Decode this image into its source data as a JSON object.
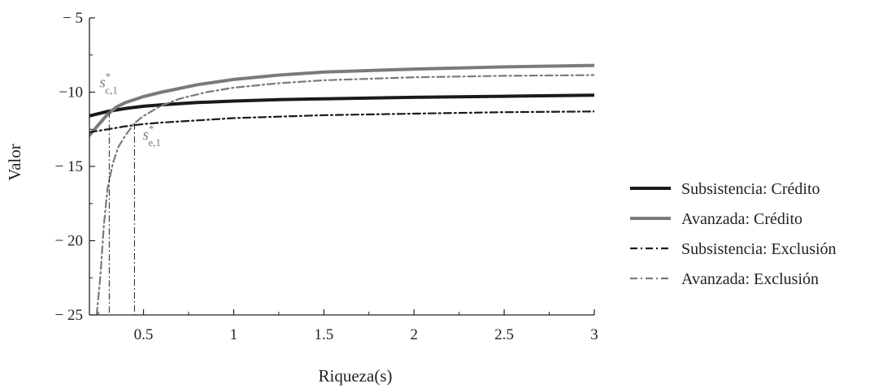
{
  "chart_data": {
    "type": "line",
    "title": "",
    "xlabel": "Riqueza(s)",
    "ylabel": "Valor",
    "xlim": [
      0.2,
      3
    ],
    "ylim": [
      -25,
      -5
    ],
    "xticks": [
      0.5,
      1,
      1.5,
      2,
      2.5,
      3
    ],
    "xtick_labels": [
      "0.5",
      "1",
      "1.5",
      "2",
      "2.5",
      "3"
    ],
    "yticks": [
      -5,
      -10,
      -15,
      -20,
      -25
    ],
    "ytick_labels": [
      "− 5",
      "−10",
      "− 15",
      "− 20",
      "− 25"
    ],
    "grid": false,
    "legend_position": "right",
    "series": [
      {
        "name": "Subsistencia: Crédito",
        "color": "#1a1a1a",
        "style": "solid",
        "x": [
          0.2,
          0.3,
          0.4,
          0.5,
          0.6,
          0.8,
          1.0,
          1.25,
          1.5,
          2.0,
          2.5,
          3.0
        ],
        "y": [
          -11.6,
          -11.3,
          -11.1,
          -10.95,
          -10.85,
          -10.7,
          -10.6,
          -10.5,
          -10.45,
          -10.35,
          -10.28,
          -10.2
        ]
      },
      {
        "name": "Avanzada: Crédito",
        "color": "#7a7a7a",
        "style": "solid",
        "x": [
          0.2,
          0.25,
          0.3,
          0.35,
          0.4,
          0.5,
          0.6,
          0.8,
          1.0,
          1.25,
          1.5,
          2.0,
          2.5,
          3.0
        ],
        "y": [
          -12.9,
          -12.2,
          -11.5,
          -11.0,
          -10.7,
          -10.3,
          -10.0,
          -9.5,
          -9.15,
          -8.85,
          -8.65,
          -8.45,
          -8.3,
          -8.2
        ]
      },
      {
        "name": "Subsistencia: Exclusión",
        "color": "#1a1a1a",
        "style": "dashdot",
        "x": [
          0.2,
          0.3,
          0.4,
          0.5,
          0.6,
          0.8,
          1.0,
          1.25,
          1.5,
          2.0,
          2.5,
          3.0
        ],
        "y": [
          -12.7,
          -12.5,
          -12.3,
          -12.15,
          -12.05,
          -11.9,
          -11.75,
          -11.65,
          -11.55,
          -11.45,
          -11.35,
          -11.3
        ]
      },
      {
        "name": "Avanzada: Exclusión",
        "color": "#7a7a7a",
        "style": "dashdot",
        "x": [
          0.24,
          0.26,
          0.28,
          0.3,
          0.33,
          0.36,
          0.4,
          0.45,
          0.5,
          0.6,
          0.7,
          0.85,
          1.0,
          1.25,
          1.5,
          2.0,
          2.5,
          3.0
        ],
        "y": [
          -25,
          -22.5,
          -19.0,
          -16.5,
          -14.8,
          -13.7,
          -12.9,
          -12.1,
          -11.6,
          -10.9,
          -10.45,
          -10.0,
          -9.7,
          -9.4,
          -9.2,
          -9.0,
          -8.9,
          -8.85
        ]
      }
    ],
    "annotations": [
      {
        "base": "s",
        "sub": "c,1",
        "sup": "*",
        "x": 0.31,
        "y": -11.3,
        "color": "#7a7a7a"
      },
      {
        "base": "s",
        "sub": "e,1",
        "sup": "*",
        "x": 0.45,
        "y": -12.1,
        "color": "#7a7a7a"
      }
    ]
  }
}
